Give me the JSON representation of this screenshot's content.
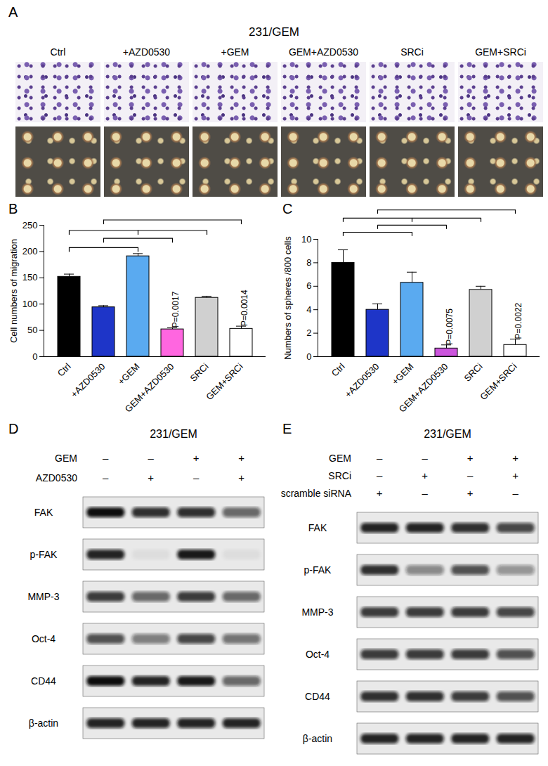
{
  "panels": {
    "A": {
      "label": "A",
      "title": "231/GEM",
      "columns": [
        "Ctrl",
        "+AZD0530",
        "+GEM",
        "GEM+AZD0530",
        "SRCi",
        "GEM+SRCi"
      ]
    },
    "D": {
      "label": "D",
      "title": "231/GEM",
      "conditions": [
        {
          "name": "GEM",
          "marks": [
            "–",
            "–",
            "+",
            "+"
          ]
        },
        {
          "name": "AZD0530",
          "marks": [
            "–",
            "+",
            "–",
            "+"
          ]
        }
      ],
      "blots": [
        {
          "protein": "FAK",
          "relative_intensity": [
            1,
            0.85,
            0.85,
            0.6
          ]
        },
        {
          "protein": "p-FAK",
          "relative_intensity": [
            0.9,
            0.05,
            0.95,
            0.05
          ]
        },
        {
          "protein": "MMP-3",
          "relative_intensity": [
            0.8,
            0.6,
            0.8,
            0.6
          ]
        },
        {
          "protein": "Oct-4",
          "relative_intensity": [
            0.7,
            0.5,
            0.75,
            0.55
          ]
        },
        {
          "protein": "CD44",
          "relative_intensity": [
            1,
            0.9,
            0.95,
            0.6
          ]
        },
        {
          "protein": "β-actin",
          "relative_intensity": [
            0.9,
            0.9,
            0.9,
            0.9
          ]
        }
      ]
    },
    "E": {
      "label": "E",
      "title": "231/GEM",
      "conditions": [
        {
          "name": "GEM",
          "marks": [
            "–",
            "–",
            "+",
            "+"
          ]
        },
        {
          "name": "SRCi",
          "marks": [
            "–",
            "+",
            "–",
            "+"
          ]
        },
        {
          "name": "scramble siRNA",
          "marks": [
            "+",
            "–",
            "+",
            "–"
          ]
        }
      ],
      "blots": [
        {
          "protein": "FAK",
          "relative_intensity": [
            0.9,
            0.9,
            0.85,
            0.75
          ]
        },
        {
          "protein": "p-FAK",
          "relative_intensity": [
            0.85,
            0.45,
            0.7,
            0.4
          ]
        },
        {
          "protein": "MMP-3",
          "relative_intensity": [
            0.8,
            0.8,
            0.8,
            0.75
          ]
        },
        {
          "protein": "Oct-4",
          "relative_intensity": [
            0.8,
            0.8,
            0.8,
            0.7
          ]
        },
        {
          "protein": "CD44",
          "relative_intensity": [
            0.85,
            0.85,
            0.8,
            0.7
          ]
        },
        {
          "protein": "β-actin",
          "relative_intensity": [
            0.9,
            0.9,
            0.9,
            0.9
          ]
        }
      ]
    }
  },
  "chart_data": [
    {
      "panel": "B",
      "type": "bar",
      "categories": [
        "Ctrl",
        "+AZD0530",
        "+GEM",
        "GEM+AZD0530",
        "SRCi",
        "GEM+SRCi"
      ],
      "values": [
        152,
        94,
        191,
        52,
        112,
        53
      ],
      "errors": [
        5,
        3,
        5,
        3,
        3,
        5
      ],
      "colors": [
        "#000000",
        "#1e35c8",
        "#5aaaf0",
        "#ff66e0",
        "#d0d0d0",
        "#ffffff"
      ],
      "ylim": [
        0,
        250
      ],
      "yticks": [
        0,
        50,
        100,
        150,
        200,
        250
      ],
      "y_label": "Cell numbers of migration",
      "annotations": [
        {
          "category": "GEM+AZD0530",
          "text": "P=0.0017"
        },
        {
          "category": "GEM+SRCi",
          "text": "P=0.0014"
        }
      ]
    },
    {
      "panel": "C",
      "type": "bar",
      "categories": [
        "Ctrl",
        "+AZD0530",
        "+GEM",
        "GEM+AZD0530",
        "SRCi",
        "GEM+SRCi"
      ],
      "values": [
        8.0,
        4.0,
        6.3,
        0.7,
        5.7,
        1.0
      ],
      "errors": [
        1.1,
        0.5,
        0.9,
        0.3,
        0.3,
        0.5
      ],
      "colors": [
        "#000000",
        "#1e35c8",
        "#5aaaf0",
        "#cc55dd",
        "#d0d0d0",
        "#ffffff"
      ],
      "ylim": [
        0,
        10
      ],
      "yticks": [
        0,
        2,
        4,
        6,
        8,
        10
      ],
      "y_label": "Numbers of spheres /800 cells",
      "annotations": [
        {
          "category": "GEM+AZD0530",
          "text": "P=0.0075"
        },
        {
          "category": "GEM+SRCi",
          "text": "P=0.0022"
        }
      ]
    }
  ]
}
